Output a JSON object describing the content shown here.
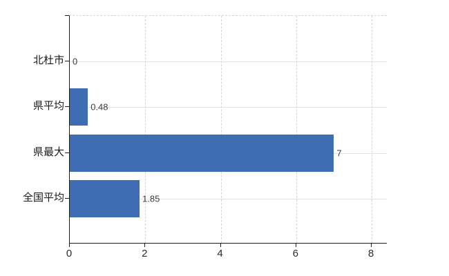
{
  "chart_data": {
    "type": "bar",
    "orientation": "horizontal",
    "title": "",
    "categories": [
      "北杜市",
      "県平均",
      "県最大",
      "全国平均"
    ],
    "values": [
      0,
      0.48,
      7,
      1.85
    ],
    "value_labels": [
      "0",
      "0.48",
      "7",
      "1.85"
    ],
    "x_axis": {
      "tick_labels": [
        "0",
        "2",
        "4",
        "6",
        "8"
      ],
      "tick_values": [
        0,
        2,
        4,
        6,
        8
      ],
      "range": [
        0,
        8.4
      ]
    },
    "y_axis": {
      "label": ""
    },
    "legend": "none",
    "grid": {
      "vertical": "dashed",
      "horizontal": "solid category lines"
    },
    "colors": {
      "bar": "#3e6db4",
      "axis": "#1a1a1a",
      "grid_vertical": "#d4d4d4",
      "grid_horizontal": "#dde3dd",
      "value_label": "#3c3c3c",
      "category_label": "#1a1a1a",
      "tick_label": "#2a2a2a",
      "background": "#ffffff"
    }
  }
}
